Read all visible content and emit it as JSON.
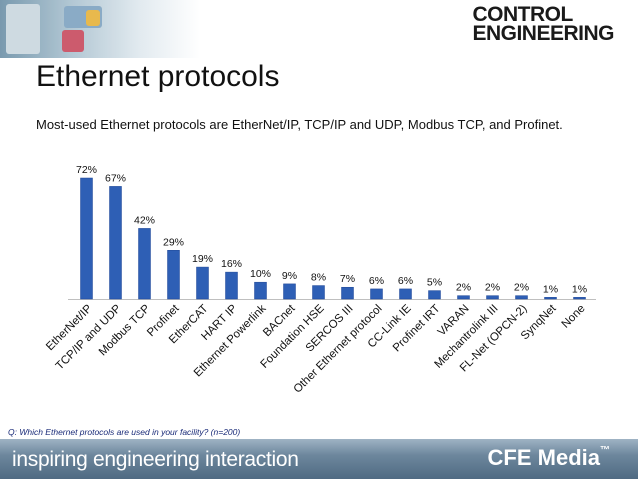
{
  "header": {
    "logo_line1": "CONTROL",
    "logo_line2": "ENGINEERING"
  },
  "title": "Ethernet protocols",
  "subtitle": "Most-used Ethernet protocols are EtherNet/IP, TCP/IP and UDP, Modbus TCP, and Profinet.",
  "footnote": "Q: Which Ethernet protocols are used in your facility? (n=200)",
  "footer": {
    "tagline": "inspiring engineering interaction",
    "brand": "CFE Media",
    "trademark": "™"
  },
  "colors": {
    "bar": "#2e5fb5",
    "bar_dark": "#1f4796",
    "axis": "#bfbfbf"
  },
  "chart_data": {
    "type": "bar",
    "title": "Ethernet protocols",
    "xlabel": "",
    "ylabel": "",
    "ylim": [
      0,
      72
    ],
    "grid": false,
    "unit": "%",
    "categories": [
      "EtherNet/IP",
      "TCP/IP and UDP",
      "Modbus TCP",
      "Profinet",
      "EtherCAT",
      "HART IP",
      "Ethernet Powerlink",
      "BACnet",
      "Foundation HSE",
      "SERCOS III",
      "Other Ethernet protocol",
      "CC-Link IE",
      "Profinet IRT",
      "VARAN",
      "Mechantrolink III",
      "FL-Net (OPCN-2)",
      "SynqNet",
      "None"
    ],
    "values": [
      72,
      67,
      42,
      29,
      19,
      16,
      10,
      9,
      8,
      7,
      6,
      6,
      5,
      2,
      2,
      2,
      1,
      1
    ],
    "labels": [
      "72%",
      "67%",
      "42%",
      "29%",
      "19%",
      "16%",
      "10%",
      "9%",
      "8%",
      "7%",
      "6%",
      "6%",
      "5%",
      "2%",
      "2%",
      "2%",
      "1%",
      "1%"
    ]
  }
}
